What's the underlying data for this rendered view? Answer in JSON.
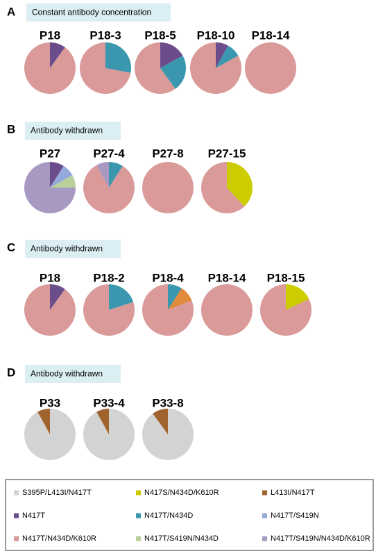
{
  "chart_data": [
    {
      "type": "pie",
      "label": "A",
      "caption": "Constant antibody concentration",
      "charts": [
        {
          "title": "P18",
          "values": [
            10,
            90
          ],
          "colors": [
            "#6c4d8c",
            "#d99a99"
          ]
        },
        {
          "title": "P18-3",
          "values": [
            28,
            72
          ],
          "colors": [
            "#3a97ae",
            "#d99a99"
          ]
        },
        {
          "title": "P18-5",
          "values": [
            17,
            23,
            60
          ],
          "colors": [
            "#6c4d8c",
            "#3a97ae",
            "#d99a99"
          ]
        },
        {
          "title": "P18-10",
          "values": [
            8,
            9,
            83
          ],
          "colors": [
            "#6c4d8c",
            "#3a97ae",
            "#d99a99"
          ]
        },
        {
          "title": "P18-14",
          "values": [
            100
          ],
          "colors": [
            "#d99a99"
          ]
        }
      ]
    },
    {
      "type": "pie",
      "label": "B",
      "caption": "Antibody withdrawn",
      "charts": [
        {
          "title": "P27",
          "values": [
            9,
            8,
            8,
            75
          ],
          "colors": [
            "#6c4d8c",
            "#95a9dd",
            "#b9d09a",
            "#a799c2"
          ]
        },
        {
          "title": "P27-4",
          "values": [
            9,
            83,
            8
          ],
          "colors": [
            "#3a97ae",
            "#d99a99",
            "#a799c2"
          ]
        },
        {
          "title": "P27-8",
          "values": [
            100
          ],
          "colors": [
            "#d99a99"
          ]
        },
        {
          "title": "P27-15",
          "values": [
            38,
            62
          ],
          "colors": [
            "#cccc00",
            "#d99a99"
          ]
        }
      ]
    },
    {
      "type": "pie",
      "label": "C",
      "caption": "Antibody withdrawn",
      "charts": [
        {
          "title": "P18",
          "values": [
            10,
            90
          ],
          "colors": [
            "#6c4d8c",
            "#d99a99"
          ]
        },
        {
          "title": "P18-2",
          "values": [
            20,
            80
          ],
          "colors": [
            "#3a97ae",
            "#d99a99"
          ]
        },
        {
          "title": "P18-4",
          "values": [
            9,
            10,
            81
          ],
          "colors": [
            "#3a97ae",
            "#e08a3c",
            "#d99a99"
          ]
        },
        {
          "title": "P18-14",
          "values": [
            100
          ],
          "colors": [
            "#d99a99"
          ]
        },
        {
          "title": "P18-15",
          "values": [
            18,
            82
          ],
          "colors": [
            "#cccc00",
            "#d99a99"
          ]
        }
      ]
    },
    {
      "type": "pie",
      "label": "D",
      "caption": "Antibody withdrawn",
      "charts": [
        {
          "title": "P33",
          "values": [
            92,
            8
          ],
          "colors": [
            "#d3d3d3",
            "#a0632e"
          ]
        },
        {
          "title": "P33-4",
          "values": [
            92,
            8
          ],
          "colors": [
            "#d3d3d3",
            "#a0632e"
          ]
        },
        {
          "title": "P33-8",
          "values": [
            90,
            10
          ],
          "colors": [
            "#d3d3d3",
            "#a0632e"
          ]
        }
      ]
    }
  ],
  "legend": {
    "items": [
      {
        "name": "S395P/L413I/N417T",
        "color": "#d3d3d3"
      },
      {
        "name": "N417S/N434D/K610R",
        "color": "#cccc00"
      },
      {
        "name": "L413I/N417T",
        "color": "#a0632e"
      },
      {
        "name": "N417T",
        "color": "#6c4d8c"
      },
      {
        "name": "N417T/N434D",
        "color": "#3a97ae"
      },
      {
        "name": "N417T/S419N",
        "color": "#95a9dd"
      },
      {
        "name": "N417T/N434D/K610R",
        "color": "#d99a99"
      },
      {
        "name": "N417T/S419N/N434D",
        "color": "#b9d09a"
      },
      {
        "name": "N417T/S419N/N434D/K610R",
        "color": "#a799c2"
      }
    ]
  }
}
